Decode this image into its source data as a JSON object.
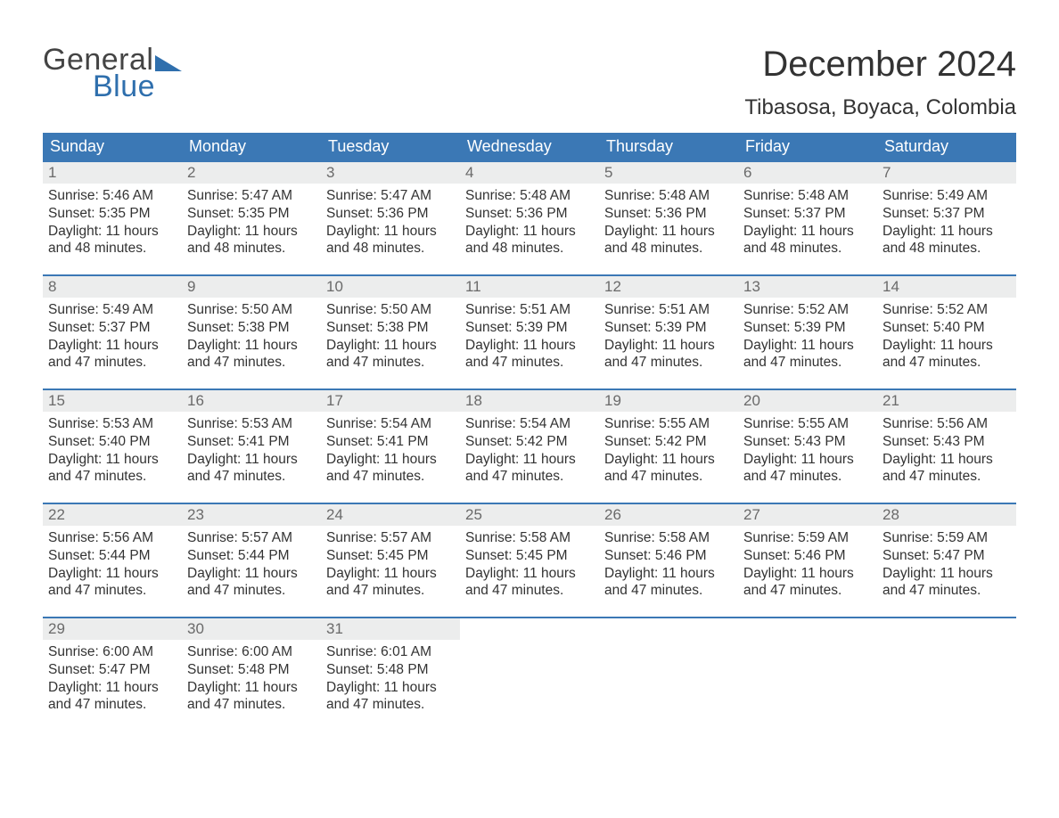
{
  "logo": {
    "line1": "General",
    "line2": "Blue",
    "brand_color": "#2f6fad",
    "text_color": "#444444"
  },
  "header": {
    "month_title": "December 2024",
    "location": "Tibasosa, Boyaca, Colombia"
  },
  "styling": {
    "header_bg": "#3b78b5",
    "header_text": "#ffffff",
    "daynum_bg": "#eceded",
    "daynum_color": "#6a6a6a",
    "body_text": "#333333",
    "row_border": "#3b78b5",
    "page_bg": "#ffffff",
    "title_fontsize": 40,
    "location_fontsize": 24,
    "header_fontsize": 18,
    "daynum_fontsize": 17,
    "body_fontsize": 15.5
  },
  "day_names": [
    "Sunday",
    "Monday",
    "Tuesday",
    "Wednesday",
    "Thursday",
    "Friday",
    "Saturday"
  ],
  "weeks": [
    [
      {
        "num": "1",
        "sunrise": "Sunrise: 5:46 AM",
        "sunset": "Sunset: 5:35 PM",
        "dl1": "Daylight: 11 hours",
        "dl2": "and 48 minutes."
      },
      {
        "num": "2",
        "sunrise": "Sunrise: 5:47 AM",
        "sunset": "Sunset: 5:35 PM",
        "dl1": "Daylight: 11 hours",
        "dl2": "and 48 minutes."
      },
      {
        "num": "3",
        "sunrise": "Sunrise: 5:47 AM",
        "sunset": "Sunset: 5:36 PM",
        "dl1": "Daylight: 11 hours",
        "dl2": "and 48 minutes."
      },
      {
        "num": "4",
        "sunrise": "Sunrise: 5:48 AM",
        "sunset": "Sunset: 5:36 PM",
        "dl1": "Daylight: 11 hours",
        "dl2": "and 48 minutes."
      },
      {
        "num": "5",
        "sunrise": "Sunrise: 5:48 AM",
        "sunset": "Sunset: 5:36 PM",
        "dl1": "Daylight: 11 hours",
        "dl2": "and 48 minutes."
      },
      {
        "num": "6",
        "sunrise": "Sunrise: 5:48 AM",
        "sunset": "Sunset: 5:37 PM",
        "dl1": "Daylight: 11 hours",
        "dl2": "and 48 minutes."
      },
      {
        "num": "7",
        "sunrise": "Sunrise: 5:49 AM",
        "sunset": "Sunset: 5:37 PM",
        "dl1": "Daylight: 11 hours",
        "dl2": "and 48 minutes."
      }
    ],
    [
      {
        "num": "8",
        "sunrise": "Sunrise: 5:49 AM",
        "sunset": "Sunset: 5:37 PM",
        "dl1": "Daylight: 11 hours",
        "dl2": "and 47 minutes."
      },
      {
        "num": "9",
        "sunrise": "Sunrise: 5:50 AM",
        "sunset": "Sunset: 5:38 PM",
        "dl1": "Daylight: 11 hours",
        "dl2": "and 47 minutes."
      },
      {
        "num": "10",
        "sunrise": "Sunrise: 5:50 AM",
        "sunset": "Sunset: 5:38 PM",
        "dl1": "Daylight: 11 hours",
        "dl2": "and 47 minutes."
      },
      {
        "num": "11",
        "sunrise": "Sunrise: 5:51 AM",
        "sunset": "Sunset: 5:39 PM",
        "dl1": "Daylight: 11 hours",
        "dl2": "and 47 minutes."
      },
      {
        "num": "12",
        "sunrise": "Sunrise: 5:51 AM",
        "sunset": "Sunset: 5:39 PM",
        "dl1": "Daylight: 11 hours",
        "dl2": "and 47 minutes."
      },
      {
        "num": "13",
        "sunrise": "Sunrise: 5:52 AM",
        "sunset": "Sunset: 5:39 PM",
        "dl1": "Daylight: 11 hours",
        "dl2": "and 47 minutes."
      },
      {
        "num": "14",
        "sunrise": "Sunrise: 5:52 AM",
        "sunset": "Sunset: 5:40 PM",
        "dl1": "Daylight: 11 hours",
        "dl2": "and 47 minutes."
      }
    ],
    [
      {
        "num": "15",
        "sunrise": "Sunrise: 5:53 AM",
        "sunset": "Sunset: 5:40 PM",
        "dl1": "Daylight: 11 hours",
        "dl2": "and 47 minutes."
      },
      {
        "num": "16",
        "sunrise": "Sunrise: 5:53 AM",
        "sunset": "Sunset: 5:41 PM",
        "dl1": "Daylight: 11 hours",
        "dl2": "and 47 minutes."
      },
      {
        "num": "17",
        "sunrise": "Sunrise: 5:54 AM",
        "sunset": "Sunset: 5:41 PM",
        "dl1": "Daylight: 11 hours",
        "dl2": "and 47 minutes."
      },
      {
        "num": "18",
        "sunrise": "Sunrise: 5:54 AM",
        "sunset": "Sunset: 5:42 PM",
        "dl1": "Daylight: 11 hours",
        "dl2": "and 47 minutes."
      },
      {
        "num": "19",
        "sunrise": "Sunrise: 5:55 AM",
        "sunset": "Sunset: 5:42 PM",
        "dl1": "Daylight: 11 hours",
        "dl2": "and 47 minutes."
      },
      {
        "num": "20",
        "sunrise": "Sunrise: 5:55 AM",
        "sunset": "Sunset: 5:43 PM",
        "dl1": "Daylight: 11 hours",
        "dl2": "and 47 minutes."
      },
      {
        "num": "21",
        "sunrise": "Sunrise: 5:56 AM",
        "sunset": "Sunset: 5:43 PM",
        "dl1": "Daylight: 11 hours",
        "dl2": "and 47 minutes."
      }
    ],
    [
      {
        "num": "22",
        "sunrise": "Sunrise: 5:56 AM",
        "sunset": "Sunset: 5:44 PM",
        "dl1": "Daylight: 11 hours",
        "dl2": "and 47 minutes."
      },
      {
        "num": "23",
        "sunrise": "Sunrise: 5:57 AM",
        "sunset": "Sunset: 5:44 PM",
        "dl1": "Daylight: 11 hours",
        "dl2": "and 47 minutes."
      },
      {
        "num": "24",
        "sunrise": "Sunrise: 5:57 AM",
        "sunset": "Sunset: 5:45 PM",
        "dl1": "Daylight: 11 hours",
        "dl2": "and 47 minutes."
      },
      {
        "num": "25",
        "sunrise": "Sunrise: 5:58 AM",
        "sunset": "Sunset: 5:45 PM",
        "dl1": "Daylight: 11 hours",
        "dl2": "and 47 minutes."
      },
      {
        "num": "26",
        "sunrise": "Sunrise: 5:58 AM",
        "sunset": "Sunset: 5:46 PM",
        "dl1": "Daylight: 11 hours",
        "dl2": "and 47 minutes."
      },
      {
        "num": "27",
        "sunrise": "Sunrise: 5:59 AM",
        "sunset": "Sunset: 5:46 PM",
        "dl1": "Daylight: 11 hours",
        "dl2": "and 47 minutes."
      },
      {
        "num": "28",
        "sunrise": "Sunrise: 5:59 AM",
        "sunset": "Sunset: 5:47 PM",
        "dl1": "Daylight: 11 hours",
        "dl2": "and 47 minutes."
      }
    ],
    [
      {
        "num": "29",
        "sunrise": "Sunrise: 6:00 AM",
        "sunset": "Sunset: 5:47 PM",
        "dl1": "Daylight: 11 hours",
        "dl2": "and 47 minutes."
      },
      {
        "num": "30",
        "sunrise": "Sunrise: 6:00 AM",
        "sunset": "Sunset: 5:48 PM",
        "dl1": "Daylight: 11 hours",
        "dl2": "and 47 minutes."
      },
      {
        "num": "31",
        "sunrise": "Sunrise: 6:01 AM",
        "sunset": "Sunset: 5:48 PM",
        "dl1": "Daylight: 11 hours",
        "dl2": "and 47 minutes."
      },
      {
        "empty": true
      },
      {
        "empty": true
      },
      {
        "empty": true
      },
      {
        "empty": true
      }
    ]
  ]
}
